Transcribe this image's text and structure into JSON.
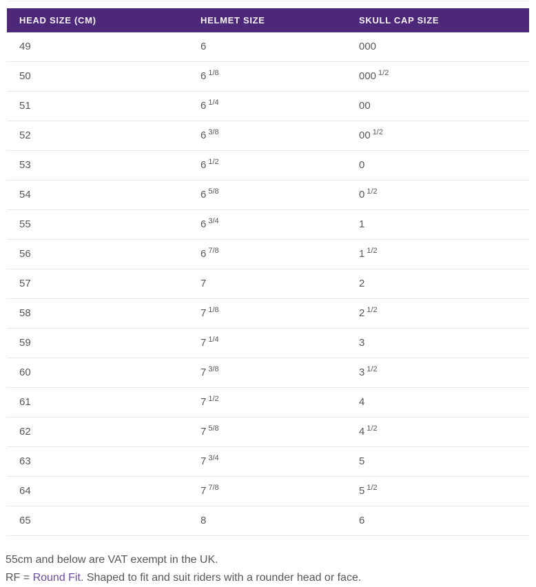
{
  "colors": {
    "header_bg": "#4d2878",
    "header_text": "#f6f3f9",
    "body_text": "#54565a",
    "row_border": "#e7e7e7",
    "link": "#6a4c9f",
    "hairline": "#ececec"
  },
  "table": {
    "columns": [
      "HEAD SIZE (CM)",
      "HELMET SIZE",
      "SKULL CAP SIZE"
    ],
    "rows": [
      {
        "head": "49",
        "helmet": "6",
        "helmet_frac": "",
        "skull": "000",
        "skull_frac": ""
      },
      {
        "head": "50",
        "helmet": "6",
        "helmet_frac": "1/8",
        "skull": "000",
        "skull_frac": "1/2"
      },
      {
        "head": "51",
        "helmet": "6",
        "helmet_frac": "1/4",
        "skull": "00",
        "skull_frac": ""
      },
      {
        "head": "52",
        "helmet": "6",
        "helmet_frac": "3/8",
        "skull": "00",
        "skull_frac": "1/2"
      },
      {
        "head": "53",
        "helmet": "6",
        "helmet_frac": "1/2",
        "skull": "0",
        "skull_frac": ""
      },
      {
        "head": "54",
        "helmet": "6",
        "helmet_frac": "5/8",
        "skull": "0",
        "skull_frac": "1/2"
      },
      {
        "head": "55",
        "helmet": "6",
        "helmet_frac": "3/4",
        "skull": "1",
        "skull_frac": ""
      },
      {
        "head": "56",
        "helmet": "6",
        "helmet_frac": "7/8",
        "skull": "1",
        "skull_frac": "1/2"
      },
      {
        "head": "57",
        "helmet": "7",
        "helmet_frac": "",
        "skull": "2",
        "skull_frac": ""
      },
      {
        "head": "58",
        "helmet": "7",
        "helmet_frac": "1/8",
        "skull": "2",
        "skull_frac": "1/2"
      },
      {
        "head": "59",
        "helmet": "7",
        "helmet_frac": "1/4",
        "skull": "3",
        "skull_frac": ""
      },
      {
        "head": "60",
        "helmet": "7",
        "helmet_frac": "3/8",
        "skull": "3",
        "skull_frac": "1/2"
      },
      {
        "head": "61",
        "helmet": "7",
        "helmet_frac": "1/2",
        "skull": "4",
        "skull_frac": ""
      },
      {
        "head": "62",
        "helmet": "7",
        "helmet_frac": "5/8",
        "skull": "4",
        "skull_frac": "1/2"
      },
      {
        "head": "63",
        "helmet": "7",
        "helmet_frac": "3/4",
        "skull": "5",
        "skull_frac": ""
      },
      {
        "head": "64",
        "helmet": "7",
        "helmet_frac": "7/8",
        "skull": "5",
        "skull_frac": "1/2"
      },
      {
        "head": "65",
        "helmet": "8",
        "helmet_frac": "",
        "skull": "6",
        "skull_frac": ""
      }
    ]
  },
  "footer": {
    "line1": "55cm and below are VAT exempt in the UK.",
    "line2_prefix": "RF = ",
    "line2_link": "Round Fit",
    "line2_suffix": ". Shaped to fit and suit riders with a rounder head or face."
  },
  "chart_data": {
    "type": "table",
    "columns": [
      "HEAD SIZE (CM)",
      "HELMET SIZE",
      "SKULL CAP SIZE"
    ],
    "rows": [
      [
        "49",
        "6",
        "000"
      ],
      [
        "50",
        "6 1/8",
        "000 1/2"
      ],
      [
        "51",
        "6 1/4",
        "00"
      ],
      [
        "52",
        "6 3/8",
        "00 1/2"
      ],
      [
        "53",
        "6 1/2",
        "0"
      ],
      [
        "54",
        "6 5/8",
        "0 1/2"
      ],
      [
        "55",
        "6 3/4",
        "1"
      ],
      [
        "56",
        "6 7/8",
        "1 1/2"
      ],
      [
        "57",
        "7",
        "2"
      ],
      [
        "58",
        "7 1/8",
        "2 1/2"
      ],
      [
        "59",
        "7 1/4",
        "3"
      ],
      [
        "60",
        "7 3/8",
        "3 1/2"
      ],
      [
        "61",
        "7 1/2",
        "4"
      ],
      [
        "62",
        "7 5/8",
        "4 1/2"
      ],
      [
        "63",
        "7 3/4",
        "5"
      ],
      [
        "64",
        "7 7/8",
        "5 1/2"
      ],
      [
        "65",
        "8",
        "6"
      ]
    ],
    "notes": [
      "55cm and below are VAT exempt in the UK.",
      "RF = Round Fit. Shaped to fit and suit riders with a rounder head or face."
    ]
  }
}
